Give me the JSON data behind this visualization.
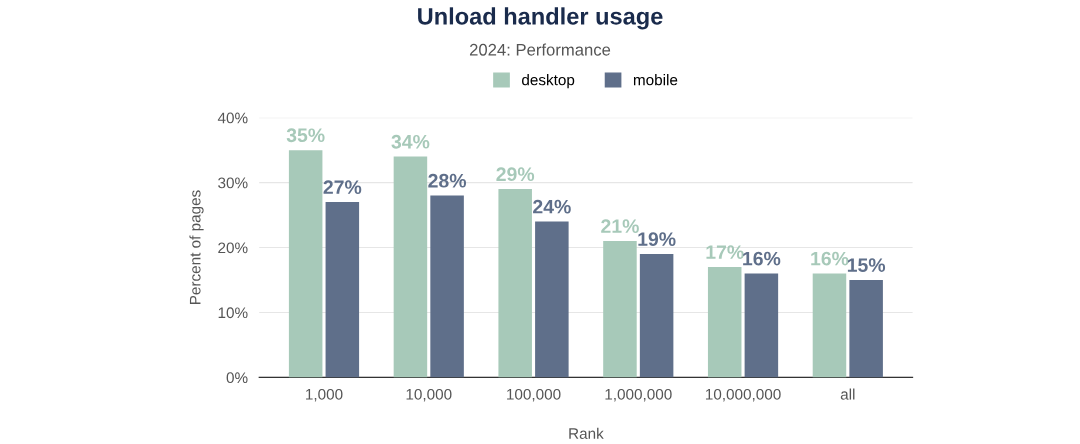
{
  "chart_data": {
    "type": "bar",
    "title": "Unload handler usage",
    "subtitle": "2024: Performance",
    "xlabel": "Rank",
    "ylabel": "Percent of pages",
    "categories": [
      "1,000",
      "10,000",
      "100,000",
      "1,000,000",
      "10,000,000",
      "all"
    ],
    "series": [
      {
        "name": "desktop",
        "color": "#a7c9b9",
        "values": [
          35,
          34,
          29,
          21,
          17,
          16
        ],
        "value_labels": [
          "35%",
          "34%",
          "29%",
          "21%",
          "17%",
          "16%"
        ]
      },
      {
        "name": "mobile",
        "color": "#5f6f8a",
        "values": [
          27,
          28,
          24,
          19,
          16,
          15
        ],
        "value_labels": [
          "27%",
          "28%",
          "24%",
          "19%",
          "16%",
          "15%"
        ]
      }
    ],
    "ylim": [
      0,
      40
    ],
    "yticks": [
      {
        "value": 0,
        "label": "0%"
      },
      {
        "value": 10,
        "label": "10%"
      },
      {
        "value": 20,
        "label": "20%"
      },
      {
        "value": 30,
        "label": "30%"
      },
      {
        "value": 40,
        "label": "40%"
      }
    ],
    "grid": "y",
    "legend": "top"
  }
}
